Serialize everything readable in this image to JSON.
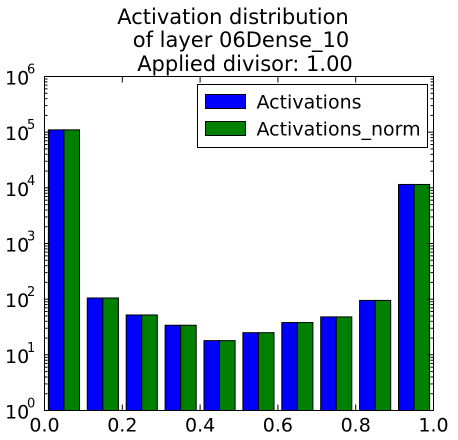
{
  "chart_data": {
    "type": "bar",
    "title_lines": [
      "Activation distribution",
      "of layer 06Dense_10",
      "Applied divisor: 1.00"
    ],
    "xlabel": "",
    "ylabel": "",
    "y_scale": "log",
    "xlim": [
      0.0,
      1.0
    ],
    "ylim": [
      1,
      1000000
    ],
    "x_tick_labels": [
      "0.0",
      "0.2",
      "0.4",
      "0.6",
      "0.8",
      "1.0"
    ],
    "y_tick_labels": [
      {
        "base": "10",
        "exp": "0"
      },
      {
        "base": "10",
        "exp": "1"
      },
      {
        "base": "10",
        "exp": "2"
      },
      {
        "base": "10",
        "exp": "3"
      },
      {
        "base": "10",
        "exp": "4"
      },
      {
        "base": "10",
        "exp": "5"
      },
      {
        "base": "10",
        "exp": "6"
      }
    ],
    "bin_edges": [
      0.0,
      0.1,
      0.2,
      0.3,
      0.4,
      0.5,
      0.6,
      0.7,
      0.8,
      0.9,
      1.0
    ],
    "series": [
      {
        "name": "Activations",
        "color": "#0000ff",
        "values": [
          110000,
          105,
          52,
          34,
          18,
          25,
          38,
          48,
          95,
          11500
        ]
      },
      {
        "name": "Activations_norm",
        "color": "#008000",
        "values": [
          110000,
          105,
          52,
          34,
          18,
          25,
          38,
          48,
          95,
          11500
        ]
      }
    ],
    "legend_position": "top-right",
    "grid": false
  }
}
